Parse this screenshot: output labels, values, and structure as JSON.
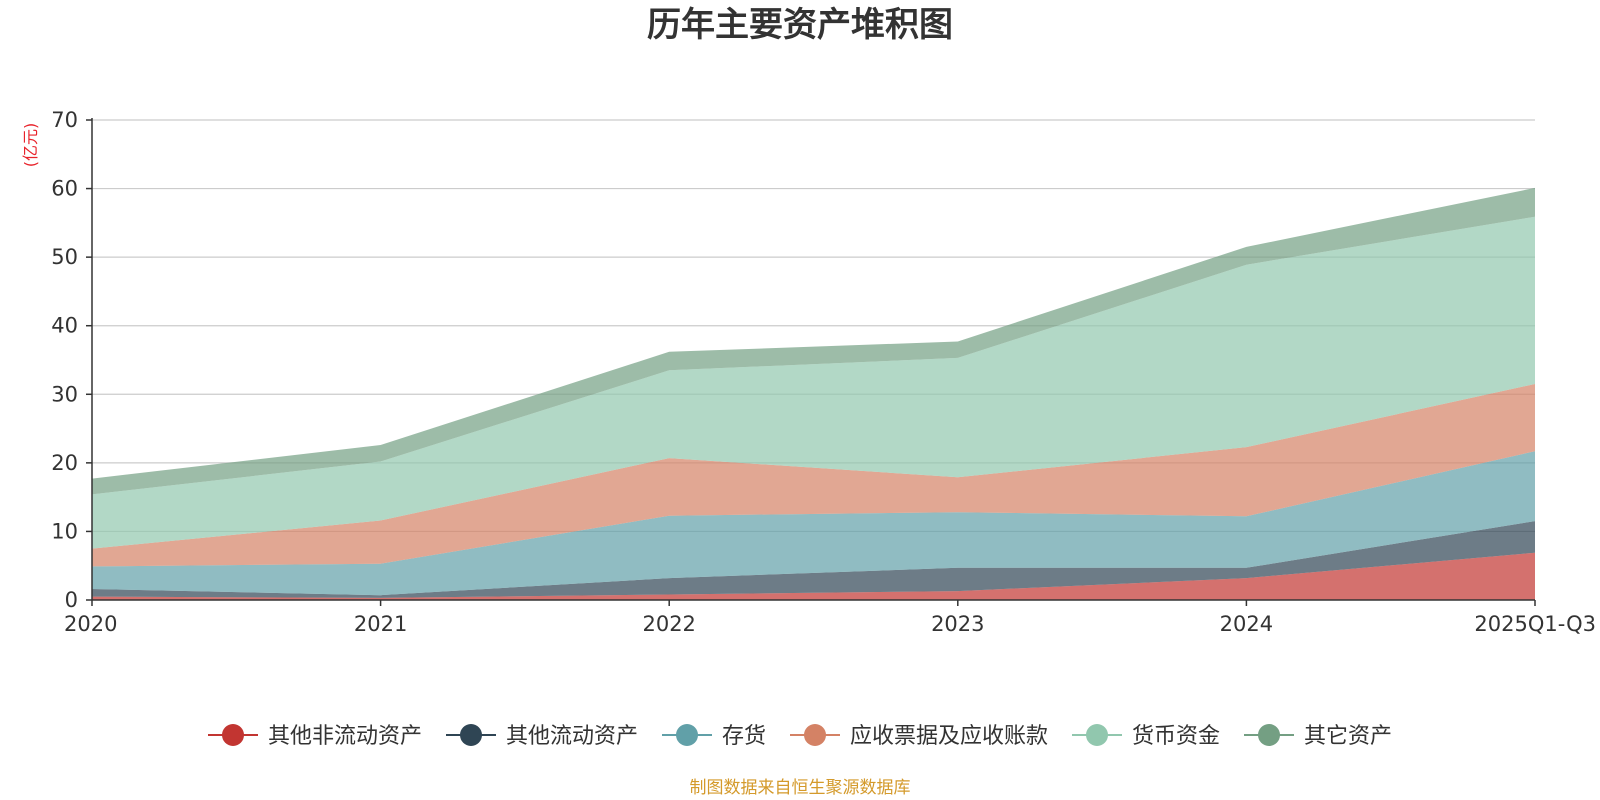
{
  "chart_data": {
    "type": "area",
    "stacked": true,
    "title": "历年主要资产堆积图",
    "unit_label": "(亿元)",
    "categories": [
      "2020",
      "2021",
      "2022",
      "2023",
      "2024",
      "2025Q1-Q3"
    ],
    "ylim": [
      0,
      70
    ],
    "yticks": [
      0,
      10,
      20,
      30,
      40,
      50,
      60,
      70
    ],
    "grid": true,
    "legend_position": "bottom",
    "series": [
      {
        "name": "其他非流动资产",
        "color": "#c23531",
        "values": [
          0.5,
          0.3,
          0.8,
          1.3,
          3.2,
          6.9
        ]
      },
      {
        "name": "其他流动资产",
        "color": "#2f4554",
        "values": [
          1.1,
          0.4,
          2.4,
          3.4,
          1.5,
          4.6
        ]
      },
      {
        "name": "存货",
        "color": "#61a0a8",
        "values": [
          3.3,
          4.6,
          9.1,
          8.1,
          7.5,
          10.2
        ]
      },
      {
        "name": "应收票据及应收账款",
        "color": "#d48265",
        "values": [
          2.6,
          6.3,
          8.4,
          5.1,
          10.1,
          9.8
        ]
      },
      {
        "name": "货币资金",
        "color": "#91c7ae",
        "values": [
          7.9,
          8.6,
          12.8,
          17.4,
          26.6,
          24.4
        ]
      },
      {
        "name": "其它资产",
        "color": "#749f83",
        "values": [
          2.3,
          2.4,
          2.7,
          2.4,
          2.6,
          4.2
        ]
      }
    ],
    "source_note": "制图数据来自恒生聚源数据库"
  }
}
